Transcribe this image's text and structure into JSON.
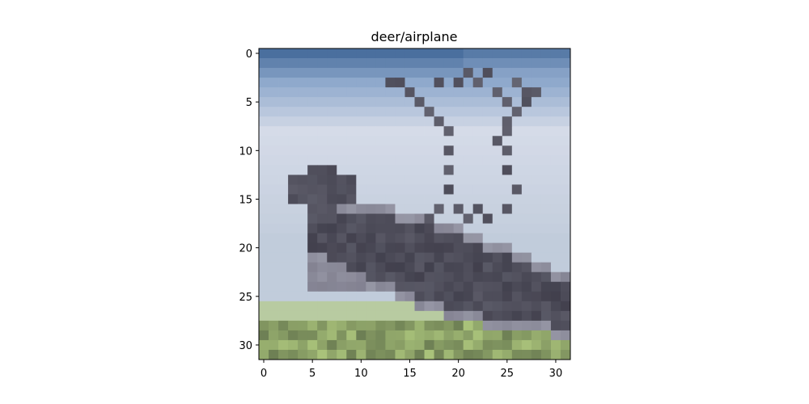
{
  "figure": {
    "title": "deer/airplane"
  },
  "image": {
    "grid_size": [
      32,
      32
    ],
    "description_colors": {
      "sky_top": "#4a6f9e",
      "sky_mid": "#8fa9cc",
      "sky_light": "#d5dbe8",
      "horizon": "#b9c6d6",
      "deer_dark": "#3a3845",
      "deer_mid": "#6b6878",
      "grass_light": "#a9c27a",
      "grass_dark": "#5e6e4a"
    }
  },
  "axes": {
    "x_ticks": [
      "0",
      "5",
      "10",
      "15",
      "20",
      "25",
      "30"
    ],
    "y_ticks": [
      "0",
      "5",
      "10",
      "15",
      "20",
      "25",
      "30"
    ]
  }
}
